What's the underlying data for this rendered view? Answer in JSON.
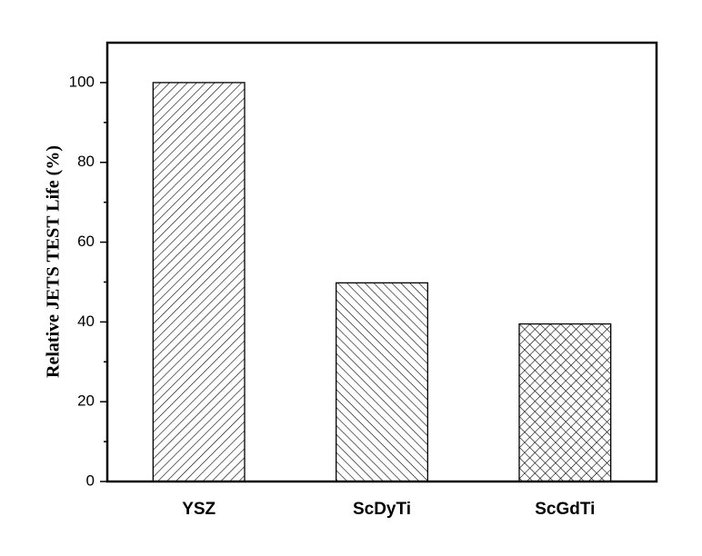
{
  "chart_data": {
    "type": "bar",
    "y_label": "Relative JETS TEST Life (%)",
    "categories": [
      "YSZ",
      "ScDyTi",
      "ScGdTi"
    ],
    "values": [
      100,
      49.8,
      39.5
    ],
    "color": "#000000",
    "hatch": [
      "/",
      "\\",
      "x"
    ],
    "ylim": [
      0,
      110
    ],
    "yticks": [
      0,
      20,
      40,
      60,
      80,
      100
    ],
    "minor_yticks": [
      10,
      30,
      50,
      70,
      90
    ],
    "grid": false
  }
}
